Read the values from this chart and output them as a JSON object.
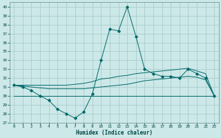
{
  "xlabel": "Humidex (Indice chaleur)",
  "ylabel": "",
  "background_color": "#cce8e8",
  "grid_color": "#aacccc",
  "line_color": "#006868",
  "xlim": [
    -0.5,
    23.5
  ],
  "ylim": [
    27,
    40.5
  ],
  "yticks": [
    27,
    28,
    29,
    30,
    31,
    32,
    33,
    34,
    35,
    36,
    37,
    38,
    39,
    40
  ],
  "xticks": [
    0,
    1,
    2,
    3,
    4,
    5,
    6,
    7,
    8,
    9,
    10,
    11,
    12,
    13,
    14,
    15,
    16,
    17,
    18,
    19,
    20,
    21,
    22,
    23
  ],
  "series": [
    {
      "x": [
        0,
        1,
        2,
        3,
        4,
        5,
        6,
        7,
        8,
        9,
        10,
        11,
        12,
        13,
        14,
        15,
        16,
        17,
        18,
        19,
        20,
        21,
        22,
        23
      ],
      "y": [
        31.2,
        31.0,
        30.6,
        30.0,
        29.5,
        28.5,
        28.0,
        27.5,
        28.2,
        30.2,
        34.0,
        37.5,
        37.3,
        40.0,
        36.7,
        33.0,
        32.5,
        32.2,
        32.2,
        32.0,
        33.0,
        32.5,
        32.0,
        30.0
      ],
      "marker": "D",
      "markersize": 1.8
    },
    {
      "x": [
        0,
        1,
        2,
        3,
        4,
        5,
        6,
        7,
        8,
        9,
        10,
        11,
        12,
        13,
        14,
        15,
        16,
        17,
        18,
        19,
        20,
        21,
        22,
        23
      ],
      "y": [
        31.2,
        31.2,
        31.2,
        31.2,
        31.2,
        31.2,
        31.2,
        31.3,
        31.4,
        31.6,
        31.9,
        32.0,
        32.2,
        32.3,
        32.5,
        32.6,
        32.7,
        32.8,
        32.9,
        33.0,
        33.1,
        32.8,
        32.5,
        30.0
      ],
      "marker": null
    },
    {
      "x": [
        0,
        1,
        2,
        3,
        4,
        5,
        6,
        7,
        8,
        9,
        10,
        11,
        12,
        13,
        14,
        15,
        16,
        17,
        18,
        19,
        20,
        21,
        22,
        23
      ],
      "y": [
        31.2,
        31.1,
        31.0,
        30.9,
        30.8,
        30.8,
        30.8,
        30.8,
        30.8,
        30.9,
        31.0,
        31.1,
        31.2,
        31.3,
        31.5,
        31.7,
        31.8,
        31.9,
        32.0,
        32.1,
        32.2,
        32.1,
        31.8,
        30.0
      ],
      "marker": null
    },
    {
      "x": [
        0,
        23
      ],
      "y": [
        30.0,
        30.0
      ],
      "marker": null,
      "linestyle": "-"
    }
  ]
}
